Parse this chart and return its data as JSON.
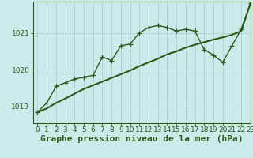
{
  "line1_x": [
    0,
    1,
    2,
    3,
    4,
    5,
    6,
    7,
    8,
    9,
    10,
    11,
    12,
    13,
    14,
    15,
    16,
    17,
    18,
    19,
    20,
    21,
    22,
    23
  ],
  "line1_y": [
    1018.85,
    1019.1,
    1019.55,
    1019.65,
    1019.75,
    1019.8,
    1019.85,
    1020.35,
    1020.25,
    1020.65,
    1020.7,
    1021.0,
    1021.15,
    1021.2,
    1021.15,
    1021.05,
    1021.1,
    1021.05,
    1020.55,
    1020.4,
    1020.2,
    1020.65,
    1021.1,
    1021.8
  ],
  "line2_x": [
    0,
    1,
    2,
    3,
    4,
    5,
    6,
    7,
    8,
    9,
    10,
    11,
    12,
    13,
    14,
    15,
    16,
    17,
    18,
    19,
    20,
    21,
    22,
    23
  ],
  "line2_y": [
    1018.85,
    1018.95,
    1019.1,
    1019.22,
    1019.35,
    1019.48,
    1019.58,
    1019.68,
    1019.78,
    1019.88,
    1019.98,
    1020.1,
    1020.2,
    1020.3,
    1020.42,
    1020.5,
    1020.6,
    1020.68,
    1020.75,
    1020.82,
    1020.88,
    1020.95,
    1021.05,
    1021.8
  ],
  "line_color": "#2d5a1b",
  "bg_color": "#cceaea",
  "grid_color": "#aad4d4",
  "xlabel": "Graphe pression niveau de la mer (hPa)",
  "xlabel_color": "#2d5a1b",
  "xlabel_fontsize": 8,
  "ylim": [
    1018.55,
    1021.85
  ],
  "xlim": [
    -0.5,
    23
  ],
  "yticks": [
    1019,
    1020,
    1021
  ],
  "xticks": [
    0,
    1,
    2,
    3,
    4,
    5,
    6,
    7,
    8,
    9,
    10,
    11,
    12,
    13,
    14,
    15,
    16,
    17,
    18,
    19,
    20,
    21,
    22,
    23
  ],
  "tick_fontsize": 6.5,
  "marker_size": 4,
  "linewidth": 1.0,
  "line2_linewidth": 1.5
}
